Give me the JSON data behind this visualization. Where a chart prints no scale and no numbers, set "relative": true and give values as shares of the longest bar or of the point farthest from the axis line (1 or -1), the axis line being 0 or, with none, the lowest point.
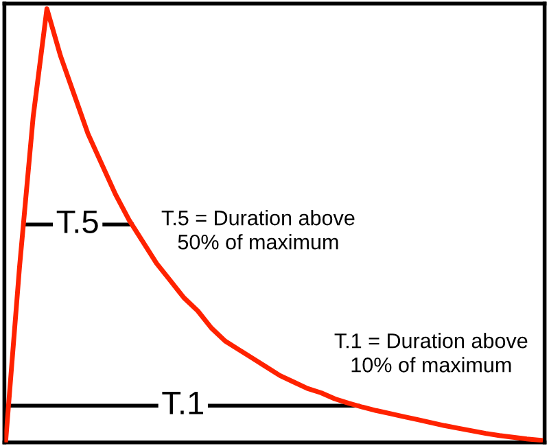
{
  "chart_data": {
    "type": "line",
    "relative": true,
    "tick_labels": false,
    "marker": "none",
    "line_style": "solid",
    "categories": [
      null,
      null,
      null,
      null,
      null,
      null,
      null,
      null,
      null,
      null,
      null,
      null,
      null,
      null,
      null,
      null,
      null,
      null,
      null,
      null,
      null,
      null,
      null,
      null,
      null,
      null,
      null,
      null,
      null,
      null,
      null,
      null,
      null,
      null,
      null,
      null,
      null,
      null,
      null,
      null
    ],
    "series": [
      {
        "color": "#ff2200",
        "values": [
          0,
          0.4,
          0.75,
          1.0,
          0.89,
          0.8,
          0.71,
          0.64,
          0.57,
          0.51,
          0.46,
          0.41,
          0.37,
          0.33,
          0.3,
          0.26,
          0.23,
          0.21,
          0.19,
          0.17,
          0.15,
          0.135,
          0.12,
          0.11,
          0.096,
          0.086,
          0.077,
          0.069,
          0.062,
          0.055,
          0.048,
          0.041,
          0.034,
          0.028,
          0.022,
          0.016,
          0.011,
          0.007,
          0.003,
          0
        ]
      }
    ],
    "ref_lines": [
      {
        "axis": "y",
        "value": 0.5,
        "label": "T.5",
        "color": "#000000"
      },
      {
        "axis": "y",
        "value": 0.08,
        "label": "T.1",
        "color": "#000000"
      }
    ],
    "annotations": [
      "T.5 = Duration above\n50% of maximum",
      "T.1 = Duration above\n10% of maximum"
    ]
  }
}
